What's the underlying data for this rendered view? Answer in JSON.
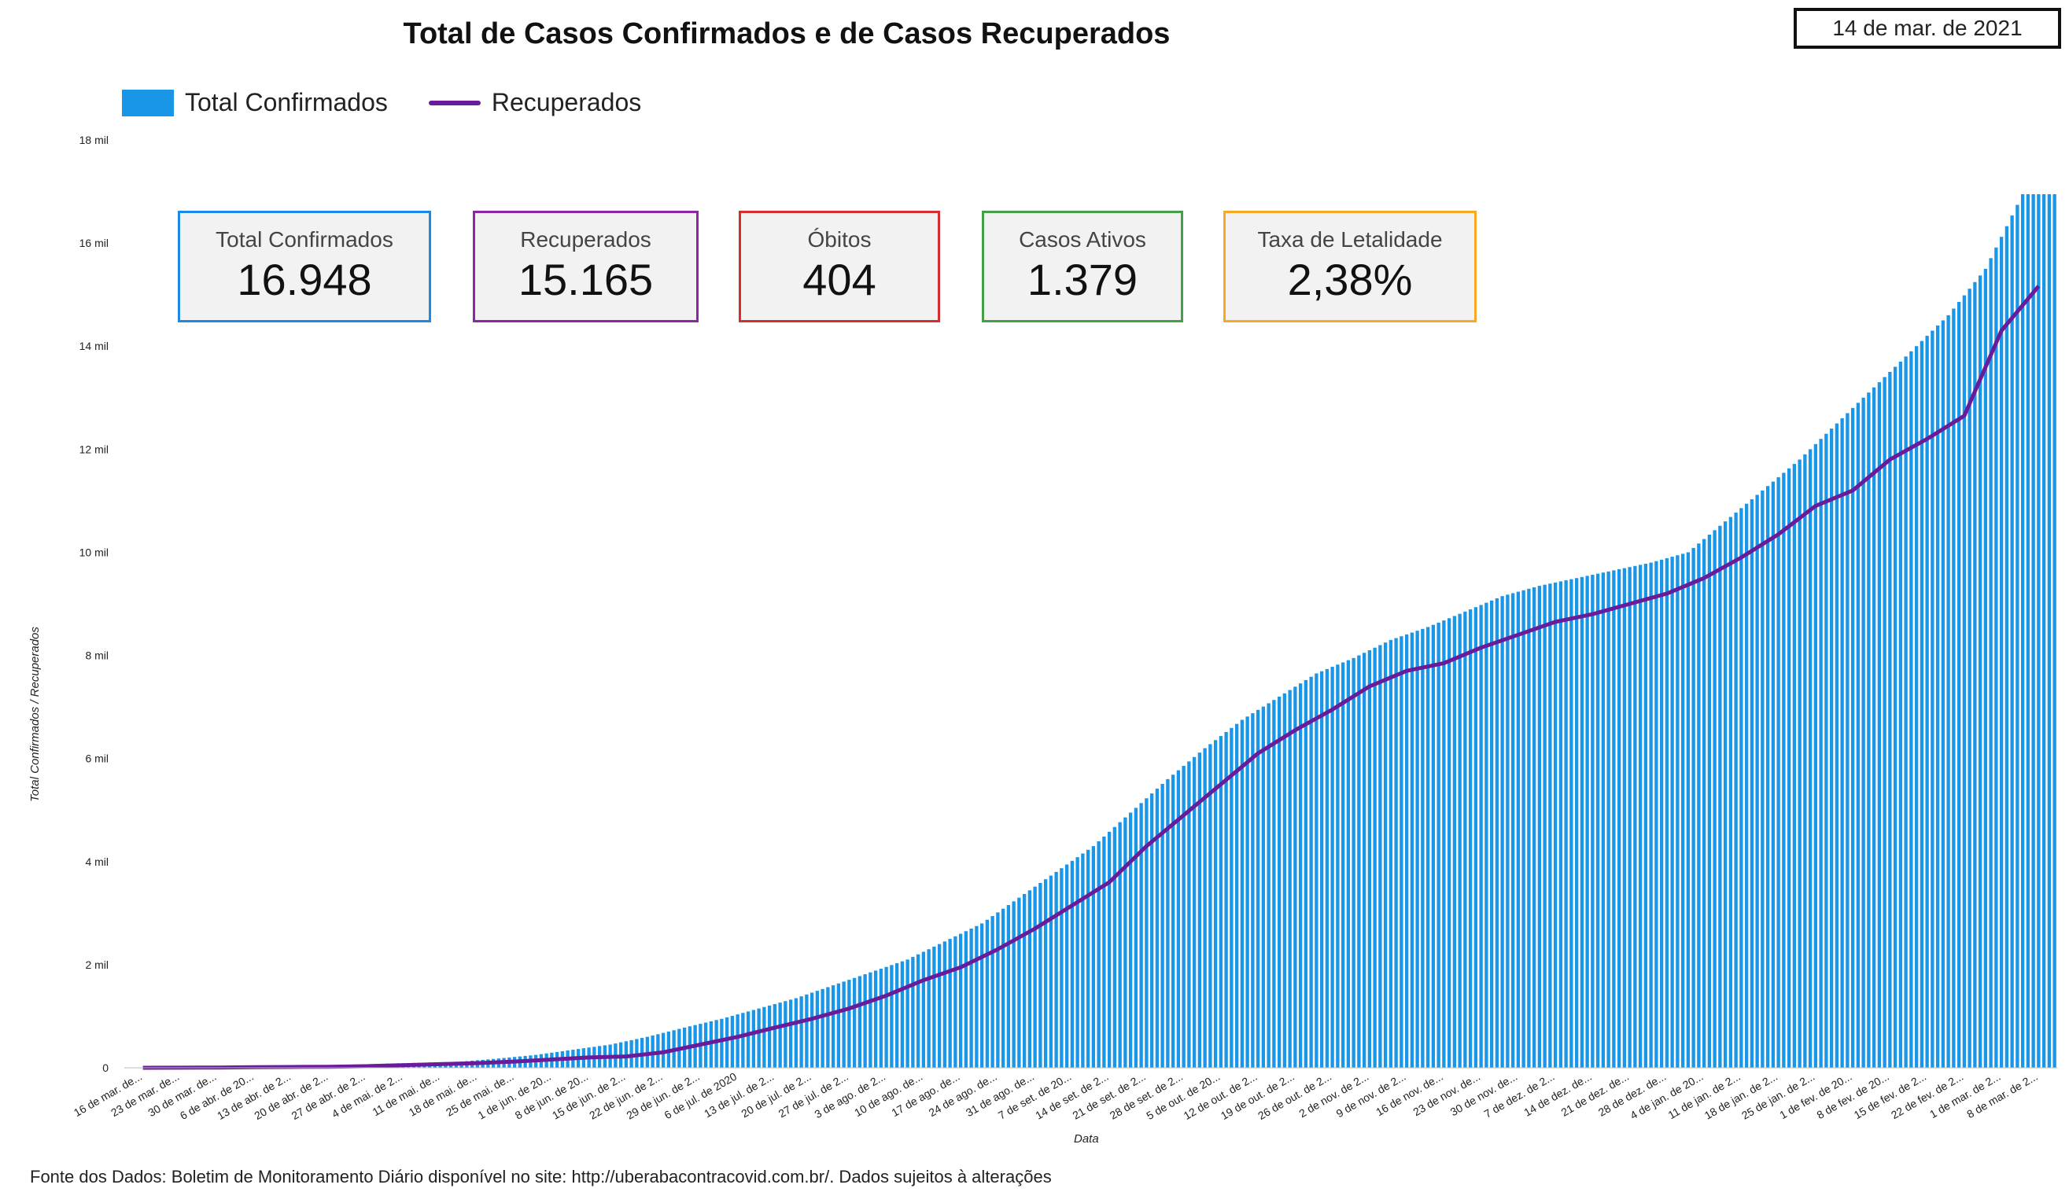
{
  "header": {
    "title": "Total de Casos Confirmados e de Casos Recuperados",
    "date": "14 de mar. de 2021"
  },
  "legend": {
    "confirmed": "Total Confirmados",
    "recovered": "Recuperados"
  },
  "colors": {
    "bars": "#1a96e8",
    "line": "#6a1b9a",
    "kpi_confirmed": "#1e88e5",
    "kpi_recovered": "#8e24aa",
    "kpi_deaths": "#d32f2f",
    "kpi_active": "#43a047",
    "kpi_lethality": "#f9a825"
  },
  "kpis": {
    "confirmed": {
      "label": "Total Confirmados",
      "value": "16.948"
    },
    "recovered": {
      "label": "Recuperados",
      "value": "15.165"
    },
    "deaths": {
      "label": "Óbitos",
      "value": "404"
    },
    "active": {
      "label": "Casos Ativos",
      "value": "1.379"
    },
    "lethality": {
      "label": "Taxa de Letalidade",
      "value": "2,38%"
    }
  },
  "footer": "Fonte dos Dados: Boletim de Monitoramento Diário disponível no site: http://uberabacontracovid.com.br/. Dados sujeitos à alterações",
  "chart_data": {
    "type": "bar",
    "xlabel": "Data",
    "ylabel": "Total Confirmados / Recuperados",
    "ylim": [
      0,
      18000
    ],
    "ytick_labels": [
      "0",
      "2 mil",
      "4 mil",
      "6 mil",
      "8 mil",
      "10 mil",
      "12 mil",
      "14 mil",
      "16 mil",
      "18 mil"
    ],
    "ytick_values": [
      0,
      2000,
      4000,
      6000,
      8000,
      10000,
      12000,
      14000,
      16000,
      18000
    ],
    "grid": false,
    "legend_position": "top-left",
    "categories": [
      "16 de mar. de...",
      "23 de mar. de...",
      "30 de mar. de...",
      "6 de abr. de 20...",
      "13 de abr. de 2...",
      "20 de abr. de 2...",
      "27 de abr. de 2...",
      "4 de mai. de 2...",
      "11 de mai. de...",
      "18 de mai. de...",
      "25 de mai. de...",
      "1 de jun. de 20...",
      "8 de jun. de 20...",
      "15 de jun. de 2...",
      "22 de jun. de 2...",
      "29 de jun. de 2...",
      "6 de jul. de 2020",
      "13 de jul. de 2...",
      "20 de jul. de 2...",
      "27 de jul. de 2...",
      "3 de ago. de 2...",
      "10 de ago. de...",
      "17 de ago. de...",
      "24 de ago. de...",
      "31 de ago. de...",
      "7 de set. de 20...",
      "14 de set. de 2...",
      "21 de set. de 2...",
      "28 de set. de 2...",
      "5 de out. de 20...",
      "12 de out. de 2...",
      "19 de out. de 2...",
      "26 de out. de 2...",
      "2 de nov. de 2...",
      "9 de nov. de 2...",
      "16 de nov. de...",
      "23 de nov. de...",
      "30 de nov. de...",
      "7 de dez. de 2...",
      "14 de dez. de...",
      "21 de dez. de...",
      "28 de dez. de...",
      "4 de jan. de 20...",
      "11 de jan. de 2...",
      "18 de jan. de 2...",
      "25 de jan. de 2...",
      "1 de fev. de 20...",
      "8 de fev. de 20...",
      "15 de fev. de 2...",
      "22 de fev. de 2...",
      "1 de mar. de 2...",
      "8 de mar. de 2..."
    ],
    "series": [
      {
        "name": "Total Confirmados",
        "type": "bar",
        "values": [
          0,
          5,
          10,
          20,
          30,
          40,
          60,
          80,
          100,
          120,
          180,
          250,
          350,
          450,
          600,
          780,
          950,
          1150,
          1350,
          1600,
          1850,
          2100,
          2450,
          2800,
          3300,
          3800,
          4300,
          4950,
          5600,
          6200,
          6750,
          7200,
          7650,
          7950,
          8300,
          8550,
          8850,
          9150,
          9350,
          9500,
          9650,
          9800,
          10000,
          10600,
          11200,
          11800,
          12500,
          13200,
          13900,
          14600,
          15500,
          16948
        ]
      },
      {
        "name": "Recuperados",
        "type": "line",
        "values": [
          0,
          2,
          5,
          10,
          15,
          20,
          30,
          50,
          70,
          90,
          120,
          160,
          200,
          220,
          300,
          450,
          600,
          780,
          950,
          1150,
          1400,
          1700,
          1950,
          2300,
          2700,
          3150,
          3600,
          4300,
          4900,
          5500,
          6100,
          6550,
          6950,
          7400,
          7700,
          7850,
          8150,
          8400,
          8650,
          8800,
          9000,
          9200,
          9500,
          9900,
          10350,
          10900,
          11200,
          11800,
          12200,
          12650,
          14300,
          15165
        ]
      }
    ]
  }
}
